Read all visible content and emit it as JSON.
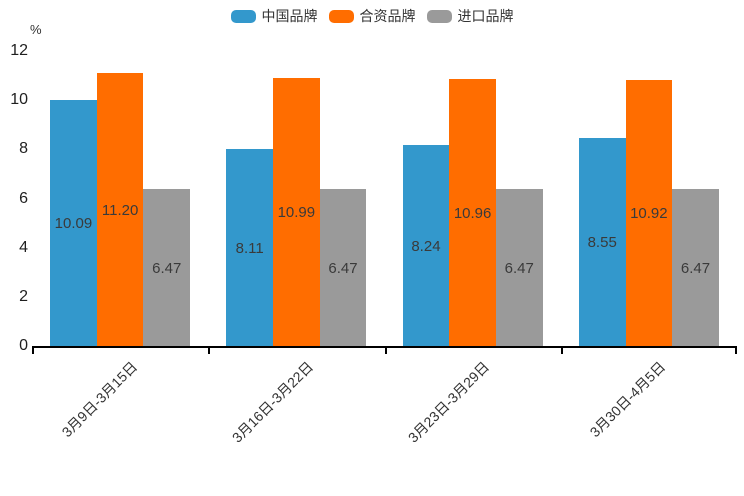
{
  "chart_data": {
    "type": "bar",
    "unit_label": "%",
    "categories": [
      "3月9日-3月15日",
      "3月16日-3月22日",
      "3月23日-3月29日",
      "3月30日-4月5日"
    ],
    "series": [
      {
        "name": "中国品牌",
        "color": "#3398CC",
        "values": [
          10.09,
          8.11,
          8.24,
          8.55
        ],
        "labels": [
          "10.09",
          "8.11",
          "8.24",
          "8.55"
        ]
      },
      {
        "name": "合资品牌",
        "color": "#FF6D00",
        "values": [
          11.2,
          10.99,
          10.96,
          10.92
        ],
        "labels": [
          "11.20",
          "10.99",
          "10.96",
          "10.92"
        ]
      },
      {
        "name": "进口品牌",
        "color": "#9A9A9A",
        "values": [
          6.47,
          6.47,
          6.47,
          6.47
        ],
        "labels": [
          "6.47",
          "6.47",
          "6.47",
          "6.47"
        ]
      }
    ],
    "ylim": [
      0,
      12
    ],
    "yticks": [
      0,
      2,
      4,
      6,
      8,
      10,
      12
    ],
    "grid": false,
    "legend_position": "top",
    "bar_value_labels_inside": true
  },
  "colors": {
    "axis": "#000000",
    "tick_text": "#1f1f1f",
    "value_text": "#3a3a3a"
  }
}
